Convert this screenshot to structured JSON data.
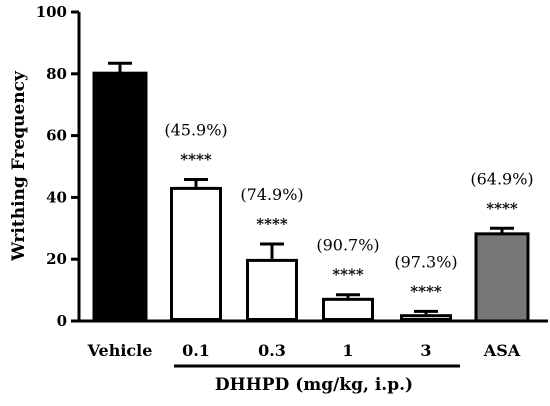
{
  "chart_data": {
    "type": "bar",
    "ylabel": "Writhing Frequency",
    "group_label": "DHHPD (mg/kg, i.p.)",
    "ylim": [
      0,
      100
    ],
    "yticks": [
      "0",
      "20",
      "40",
      "60",
      "80",
      "100"
    ],
    "categories": [
      "Vehicle",
      "0.1",
      "0.3",
      "1",
      "3",
      "ASA"
    ],
    "values": [
      80.2,
      43.4,
      20.1,
      7.5,
      2.2,
      28.2
    ],
    "errors": [
      3.2,
      2.4,
      4.8,
      1.0,
      0.9,
      1.8
    ],
    "percent_labels": [
      "",
      "(45.9%)",
      "(74.9%)",
      "(90.7%)",
      "(97.3%)",
      "(64.9%)"
    ],
    "significance": [
      "",
      "****",
      "****",
      "****",
      "****",
      "****"
    ],
    "bar_colors": [
      "#000000",
      "#ffffff",
      "#ffffff",
      "#ffffff",
      "#ffffff",
      "#777777"
    ]
  }
}
